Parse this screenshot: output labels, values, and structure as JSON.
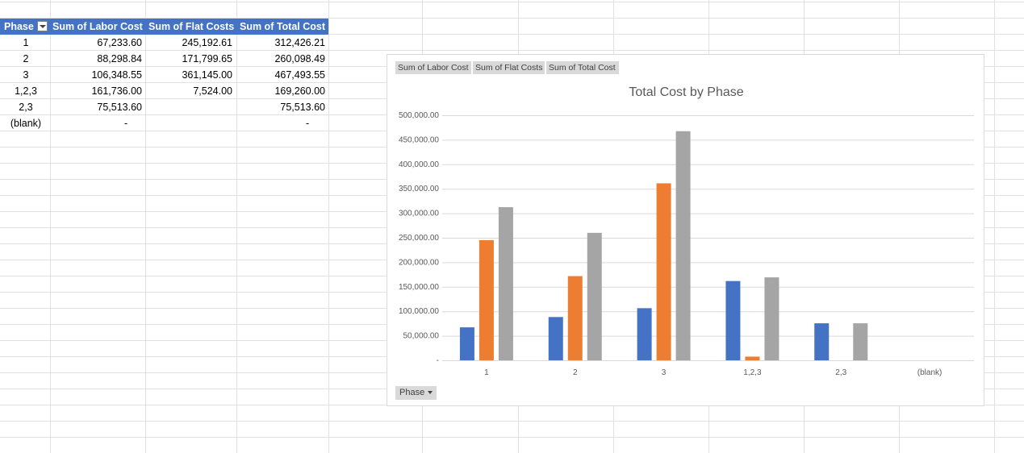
{
  "pivot": {
    "headers": [
      "Phase",
      "Sum of Labor Cost",
      "Sum of Flat Costs",
      "Sum of Total Cost"
    ],
    "rows": [
      [
        "1",
        "67,233.60",
        "245,192.61",
        "312,426.21"
      ],
      [
        "2",
        "88,298.84",
        "171,799.65",
        "260,098.49"
      ],
      [
        "3",
        "106,348.55",
        "361,145.00",
        "467,493.55"
      ],
      [
        "1,2,3",
        "161,736.00",
        "7,524.00",
        "169,260.00"
      ],
      [
        "2,3",
        "75,513.60",
        "",
        "75,513.60"
      ],
      [
        "(blank)",
        "-",
        "",
        "-"
      ]
    ]
  },
  "chart_fields": [
    "Sum of Labor Cost",
    "Sum of Flat Costs",
    "Sum of Total Cost"
  ],
  "axis_field_button": "Phase",
  "colors": {
    "header_blue": "#4472c4",
    "series1": "#4472c4",
    "series2": "#ed7d31",
    "series3": "#a5a5a5"
  },
  "chart_data": {
    "type": "bar",
    "title": "Total Cost by Phase",
    "categories": [
      "1",
      "2",
      "3",
      "1,2,3",
      "2,3",
      "(blank)"
    ],
    "series": [
      {
        "values": [
          67233.6,
          88298.84,
          106348.55,
          161736.0,
          75513.6,
          0
        ]
      },
      {
        "values": [
          245192.61,
          171799.65,
          361145.0,
          7524.0,
          0,
          0
        ]
      },
      {
        "values": [
          312426.21,
          260098.49,
          467493.55,
          169260.0,
          75513.6,
          0
        ]
      }
    ],
    "y_ticks": [
      "-",
      "50,000.00",
      "100,000.00",
      "150,000.00",
      "200,000.00",
      "250,000.00",
      "300,000.00",
      "350,000.00",
      "400,000.00",
      "450,000.00",
      "500,000.00"
    ],
    "ylim": [
      0,
      500000
    ],
    "grid": true,
    "legend": "none"
  }
}
